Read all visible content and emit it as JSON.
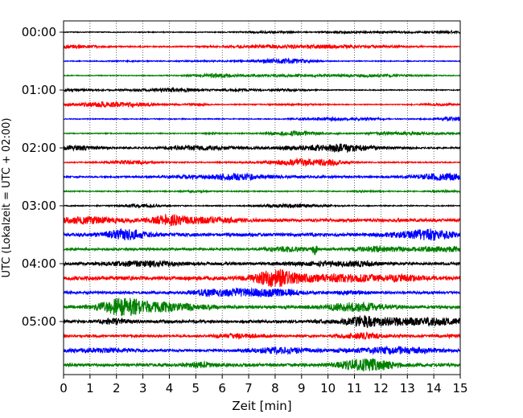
{
  "chart_data": {
    "type": "line",
    "title": "",
    "xlabel": "Zeit  [min]",
    "ylabel": "UTC (Lokalzeit = UTC + 02:00)",
    "xlim": [
      0,
      15
    ],
    "x_ticks": [
      "0",
      "1",
      "2",
      "3",
      "4",
      "5",
      "6",
      "7",
      "8",
      "9",
      "10",
      "11",
      "12",
      "13",
      "14",
      "15"
    ],
    "y_ticks": [
      "00:00",
      "01:00",
      "02:00",
      "03:00",
      "04:00",
      "05:00"
    ],
    "grid": "vertical dotted",
    "line_minutes": 15,
    "trace_colors": [
      "#000000",
      "#ff0000",
      "#0000ff",
      "#008000"
    ],
    "traces": [
      {
        "start": "00:00",
        "color": "#000000",
        "amplitude": 1.0
      },
      {
        "start": "00:15",
        "color": "#ff0000",
        "amplitude": 1.4
      },
      {
        "start": "00:30",
        "color": "#0000ff",
        "amplitude": 1.0
      },
      {
        "start": "00:45",
        "color": "#008000",
        "amplitude": 1.0
      },
      {
        "start": "01:00",
        "color": "#000000",
        "amplitude": 1.1
      },
      {
        "start": "01:15",
        "color": "#ff0000",
        "amplitude": 1.0
      },
      {
        "start": "01:30",
        "color": "#0000ff",
        "amplitude": 1.1
      },
      {
        "start": "01:45",
        "color": "#008000",
        "amplitude": 1.1
      },
      {
        "start": "02:00",
        "color": "#000000",
        "amplitude": 1.8
      },
      {
        "start": "02:15",
        "color": "#ff0000",
        "amplitude": 1.4
      },
      {
        "start": "02:30",
        "color": "#0000ff",
        "amplitude": 1.8
      },
      {
        "start": "02:45",
        "color": "#008000",
        "amplitude": 1.3
      },
      {
        "start": "03:00",
        "color": "#000000",
        "amplitude": 1.2
      },
      {
        "start": "03:15",
        "color": "#ff0000",
        "amplitude": 3.6
      },
      {
        "start": "03:30",
        "color": "#0000ff",
        "amplitude": 3.8
      },
      {
        "start": "03:45",
        "color": "#008000",
        "amplitude": 2.6
      },
      {
        "start": "04:00",
        "color": "#000000",
        "amplitude": 3.4
      },
      {
        "start": "04:15",
        "color": "#ff0000",
        "amplitude": 4.5
      },
      {
        "start": "04:30",
        "color": "#0000ff",
        "amplitude": 3.0
      },
      {
        "start": "04:45",
        "color": "#008000",
        "amplitude": 3.6
      },
      {
        "start": "05:00",
        "color": "#000000",
        "amplitude": 3.4
      },
      {
        "start": "05:15",
        "color": "#ff0000",
        "amplitude": 2.6
      },
      {
        "start": "05:30",
        "color": "#0000ff",
        "amplitude": 2.8
      },
      {
        "start": "05:45",
        "color": "#008000",
        "amplitude": 3.6
      }
    ]
  }
}
